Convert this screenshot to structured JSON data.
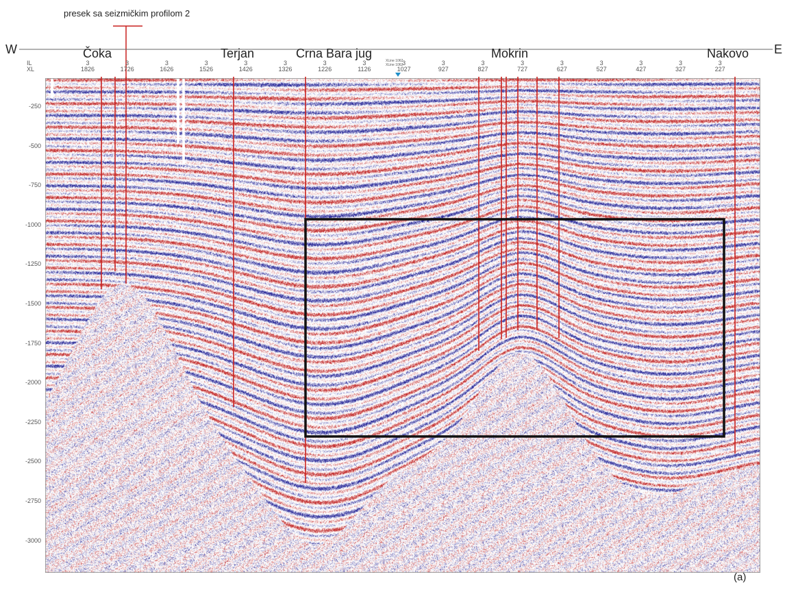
{
  "annotation": {
    "crossing_label": "presek sa seizmičkim profilom 2"
  },
  "compass": {
    "west": "W",
    "east": "E"
  },
  "wells": [
    {
      "name": "Čoka"
    },
    {
      "name": "Terjan"
    },
    {
      "name": "Crna Bara jug"
    },
    {
      "name": "Mokrin"
    },
    {
      "name": "Nakovo"
    }
  ],
  "axis_header": {
    "il": "IL",
    "xl": "XL"
  },
  "inline_value": "3",
  "xline_marker": [
    "XLine 1062",
    "XLine 1062"
  ],
  "xline_ticks": [
    "1826",
    "1726",
    "1626",
    "1526",
    "1426",
    "1326",
    "1226",
    "1126",
    "1027",
    "927",
    "827",
    "727",
    "627",
    "527",
    "427",
    "327",
    "227"
  ],
  "depth_ticks": [
    "-250",
    "-500",
    "-750",
    "-1000",
    "-1250",
    "-1500",
    "-1750",
    "-2000",
    "-2250",
    "-2500",
    "-2750",
    "-3000"
  ],
  "panel_label": "(a)",
  "colors": {
    "well_line": "#c9211e",
    "trough": "#2c2c9e",
    "peak": "#c42f2f",
    "frame": "#111111"
  }
}
